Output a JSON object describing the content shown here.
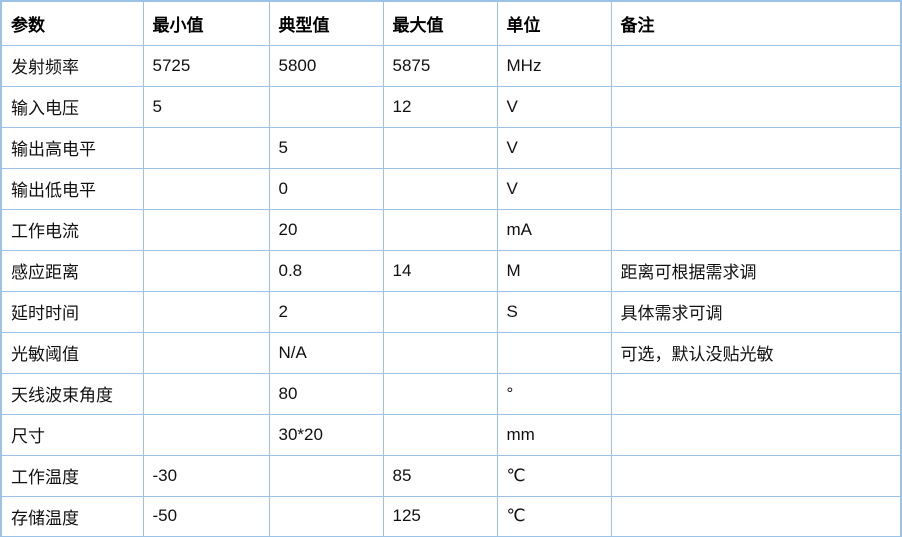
{
  "table": {
    "columns": [
      {
        "key": "param",
        "label": "参数"
      },
      {
        "key": "min",
        "label": "最小值"
      },
      {
        "key": "typ",
        "label": "典型值"
      },
      {
        "key": "max",
        "label": "最大值"
      },
      {
        "key": "unit",
        "label": "单位"
      },
      {
        "key": "note",
        "label": "备注"
      }
    ],
    "rows": [
      {
        "param": "发射频率",
        "min": "5725",
        "typ": "5800",
        "max": "5875",
        "unit": "MHz",
        "note": ""
      },
      {
        "param": "输入电压",
        "min": "5",
        "typ": "",
        "max": "12",
        "unit": "V",
        "note": ""
      },
      {
        "param": "输出高电平",
        "min": "",
        "typ": "5",
        "max": "",
        "unit": "V",
        "note": ""
      },
      {
        "param": "输出低电平",
        "min": "",
        "typ": "0",
        "max": "",
        "unit": "V",
        "note": ""
      },
      {
        "param": "工作电流",
        "min": "",
        "typ": "20",
        "max": "",
        "unit": "mA",
        "note": ""
      },
      {
        "param": "感应距离",
        "min": "",
        "typ": "0.8",
        "max": "14",
        "unit": "M",
        "note": "距离可根据需求调"
      },
      {
        "param": "延时时间",
        "min": "",
        "typ": "2",
        "max": "",
        "unit": "S",
        "note": "具体需求可调"
      },
      {
        "param": "光敏阈值",
        "min": "",
        "typ": "N/A",
        "max": "",
        "unit": "",
        "note": "可选，默认没贴光敏"
      },
      {
        "param": "天线波束角度",
        "min": "",
        "typ": "80",
        "max": "",
        "unit": "°",
        "note": ""
      },
      {
        "param": "尺寸",
        "min": "",
        "typ": "30*20",
        "max": "",
        "unit": "mm",
        "note": ""
      },
      {
        "param": "工作温度",
        "min": "-30",
        "typ": "",
        "max": "85",
        "unit": "℃",
        "note": ""
      },
      {
        "param": "存储温度",
        "min": "-50",
        "typ": "",
        "max": "125",
        "unit": "℃",
        "note": ""
      }
    ]
  },
  "colors": {
    "border": "#9CC2E5",
    "text": "#111111",
    "background": "#ffffff"
  }
}
